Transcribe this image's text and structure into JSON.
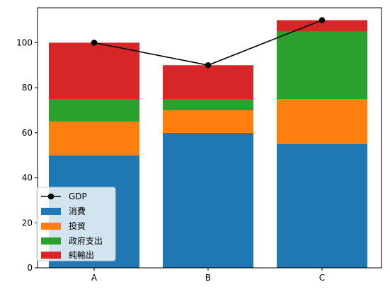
{
  "chart_data": {
    "type": "bar",
    "stacked": true,
    "categories": [
      "A",
      "B",
      "C"
    ],
    "series": [
      {
        "name": "消費",
        "values": [
          50,
          60,
          55
        ],
        "color": "#1f77b4"
      },
      {
        "name": "投資",
        "values": [
          15,
          10,
          20
        ],
        "color": "#ff7f0e"
      },
      {
        "name": "政府支出",
        "values": [
          10,
          5,
          30
        ],
        "color": "#2ca02c"
      },
      {
        "name": "純輸出",
        "values": [
          25,
          15,
          5
        ],
        "color": "#d62728"
      }
    ],
    "line": {
      "name": "GDP",
      "values": [
        100,
        90,
        110
      ],
      "color": "#000000"
    },
    "title": "",
    "xlabel": "",
    "ylabel": "",
    "ylim": [
      0,
      115.5
    ],
    "yticks": [
      0,
      20,
      40,
      60,
      80,
      100
    ],
    "grid": false,
    "legend_position": "lower-left"
  }
}
